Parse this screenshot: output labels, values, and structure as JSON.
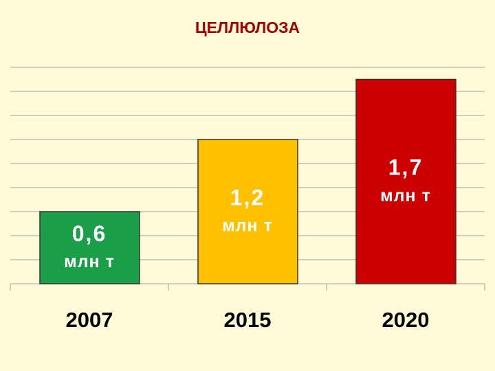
{
  "chart_data": {
    "type": "bar",
    "title": "ЦЕЛЛЮЛОЗА",
    "categories": [
      "2007",
      "2015",
      "2020"
    ],
    "values": [
      0.6,
      1.2,
      1.7
    ],
    "value_labels": [
      "0,6",
      "1,2",
      "1,7"
    ],
    "unit": "млн т",
    "colors": [
      "#1a9e48",
      "#ffc000",
      "#cc0000"
    ],
    "ylim": [
      0,
      1.8
    ],
    "yticks": [
      0,
      0.2,
      0.4,
      0.6,
      0.8,
      1,
      1.2,
      1.4,
      1.6,
      1.8
    ],
    "grid": true
  }
}
